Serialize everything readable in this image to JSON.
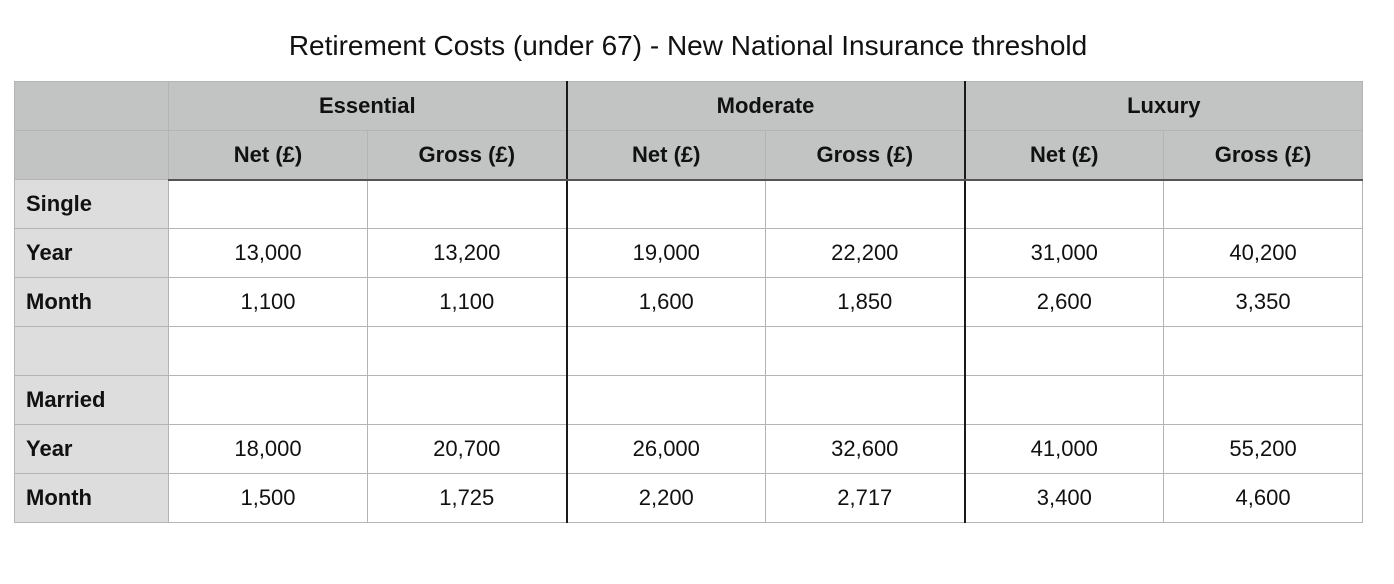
{
  "title": "Retirement Costs (under 67) - New National Insurance threshold",
  "groups": [
    "Essential",
    "Moderate",
    "Luxury"
  ],
  "subheaders": [
    "Net (£)",
    "Gross (£)",
    "Net (£)",
    "Gross (£)",
    "Net (£)",
    "Gross (£)"
  ],
  "rows": [
    {
      "label": "Single",
      "values": [
        "",
        "",
        "",
        "",
        "",
        ""
      ]
    },
    {
      "label": "Year",
      "values": [
        "13,000",
        "13,200",
        "19,000",
        "22,200",
        "31,000",
        "40,200"
      ]
    },
    {
      "label": "Month",
      "values": [
        "1,100",
        "1,100",
        "1,600",
        "1,850",
        "2,600",
        "3,350"
      ]
    },
    {
      "label": "",
      "values": [
        "",
        "",
        "",
        "",
        "",
        ""
      ]
    },
    {
      "label": "Married",
      "values": [
        "",
        "",
        "",
        "",
        "",
        ""
      ]
    },
    {
      "label": "Year",
      "values": [
        "18,000",
        "20,700",
        "26,000",
        "32,600",
        "41,000",
        "55,200"
      ]
    },
    {
      "label": "Month",
      "values": [
        "1,500",
        "1,725",
        "2,200",
        "2,717",
        "3,400",
        "4,600"
      ]
    }
  ]
}
